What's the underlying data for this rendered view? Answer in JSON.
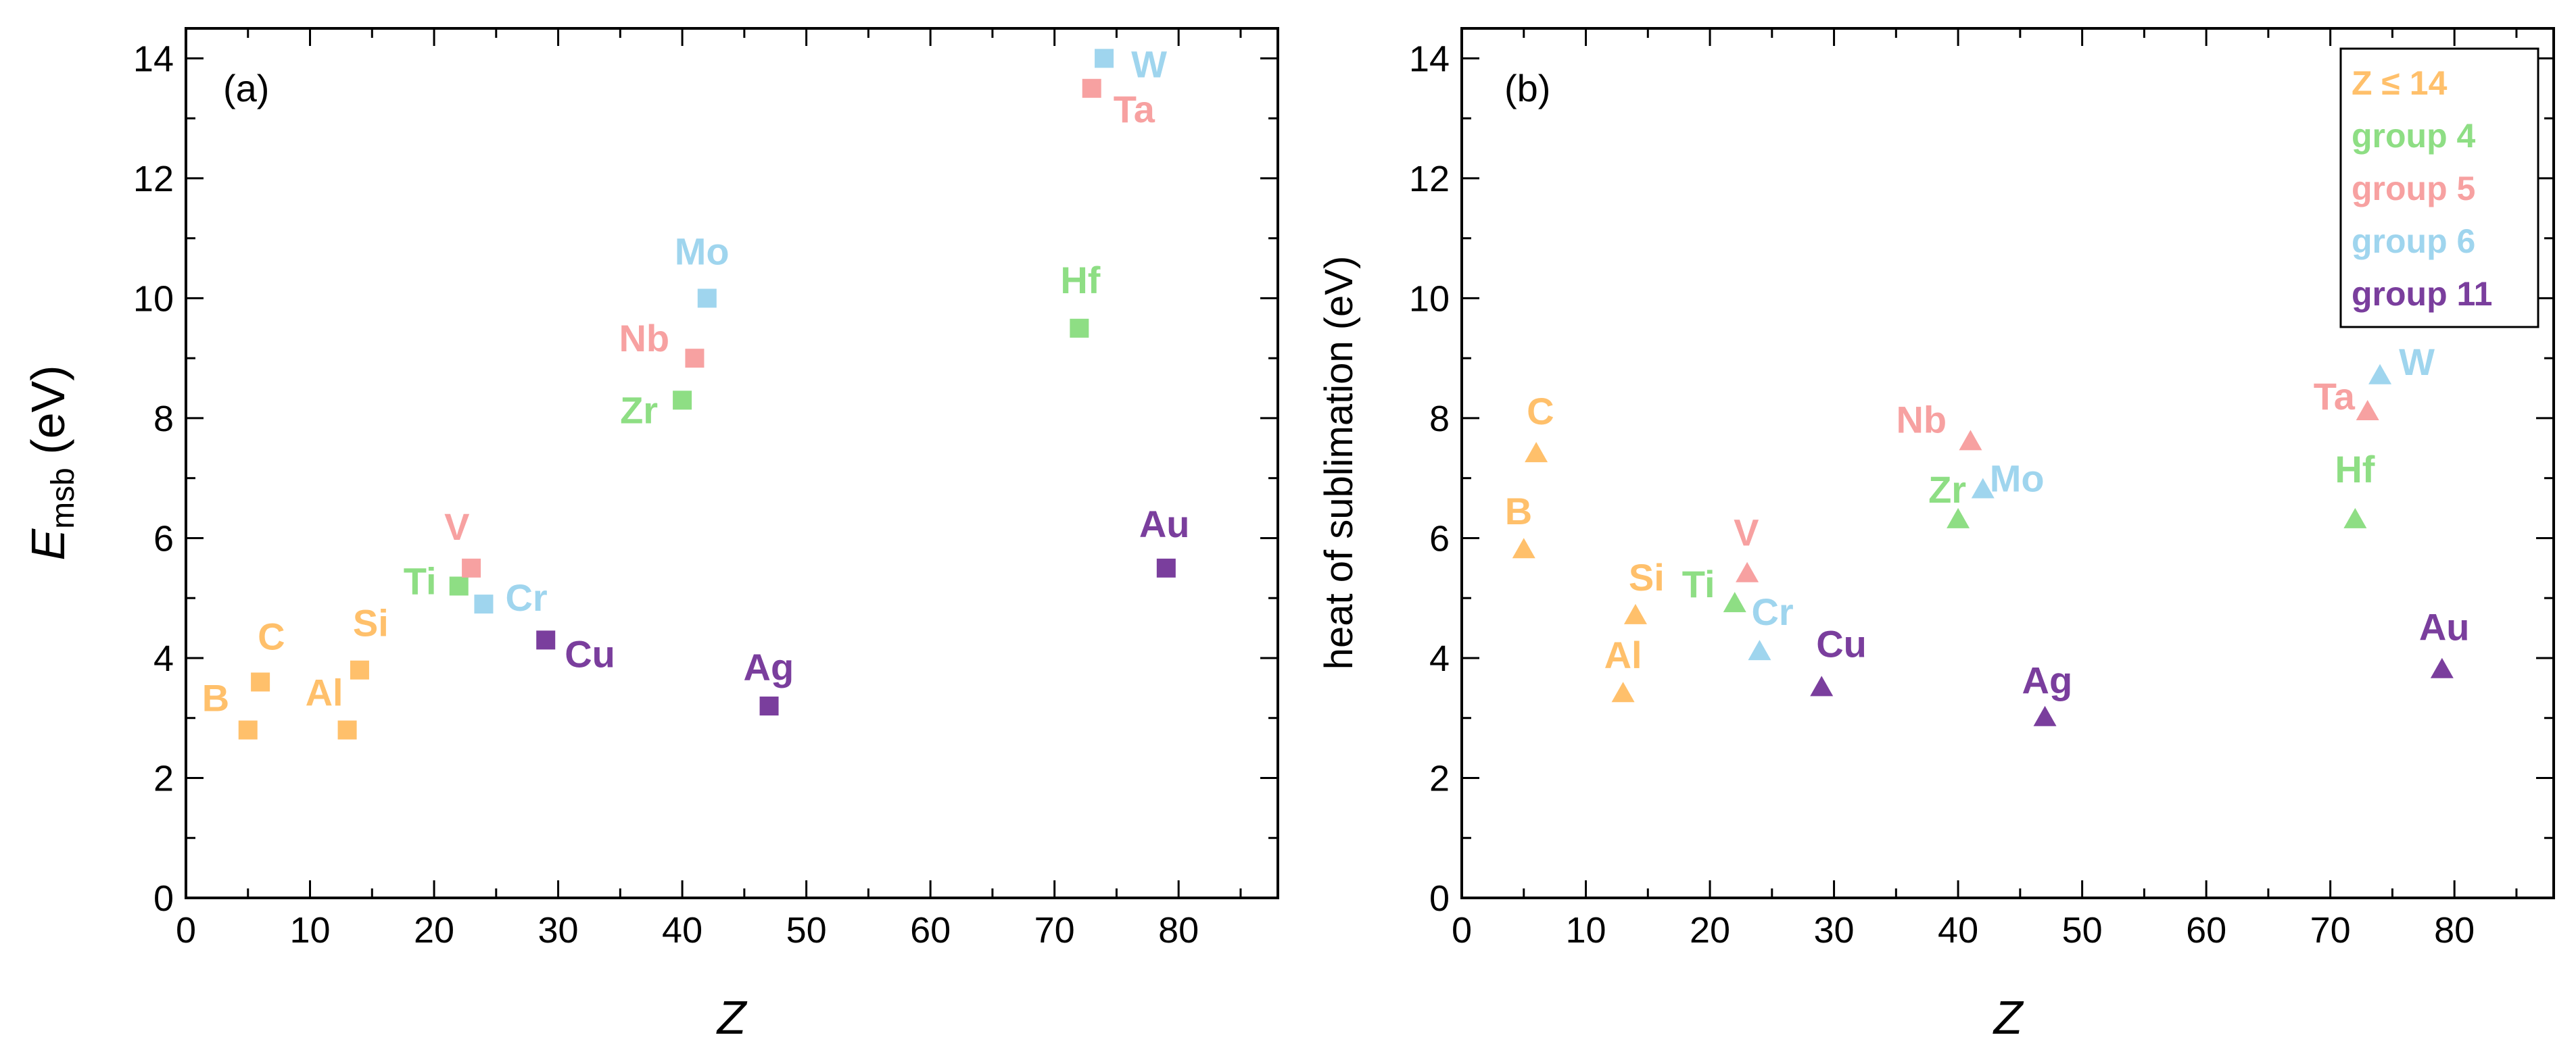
{
  "colors": {
    "z_le_14": "#FFC06B",
    "group4": "#8EDE84",
    "group5": "#F7A1A1",
    "group6": "#9FD5EE",
    "group11": "#7A3E9D"
  },
  "chart_data": [
    {
      "type": "scatter",
      "panel_label": "(a)",
      "marker": "square",
      "xlabel": "Z",
      "ylabel_main": "E",
      "ylabel_sub": "msb",
      "ylabel_unit": " (eV)",
      "xlim": [
        0,
        88
      ],
      "ylim": [
        0,
        14.5
      ],
      "xticks": [
        0,
        10,
        20,
        30,
        40,
        50,
        60,
        70,
        80
      ],
      "yticks": [
        0,
        2,
        4,
        6,
        8,
        10,
        12,
        14
      ],
      "xtick_labels": [
        "0",
        "10",
        "20",
        "30",
        "40",
        "50",
        "60",
        "70",
        "80"
      ],
      "ytick_labels": [
        "0",
        "2",
        "4",
        "6",
        "8",
        "10",
        "12",
        "14"
      ],
      "points": [
        {
          "label": "B",
          "x": 5,
          "y": 2.8,
          "group": "z_le_14"
        },
        {
          "label": "C",
          "x": 6,
          "y": 3.6,
          "group": "z_le_14"
        },
        {
          "label": "Al",
          "x": 13,
          "y": 2.8,
          "group": "z_le_14"
        },
        {
          "label": "Si",
          "x": 14,
          "y": 3.8,
          "group": "z_le_14"
        },
        {
          "label": "Ti",
          "x": 22,
          "y": 5.2,
          "group": "group4"
        },
        {
          "label": "V",
          "x": 23,
          "y": 5.5,
          "group": "group5"
        },
        {
          "label": "Cr",
          "x": 24,
          "y": 4.9,
          "group": "group6"
        },
        {
          "label": "Cu",
          "x": 29,
          "y": 4.3,
          "group": "group11"
        },
        {
          "label": "Zr",
          "x": 40,
          "y": 8.3,
          "group": "group4"
        },
        {
          "label": "Nb",
          "x": 41,
          "y": 9.0,
          "group": "group5"
        },
        {
          "label": "Mo",
          "x": 42,
          "y": 10.0,
          "group": "group6"
        },
        {
          "label": "Ag",
          "x": 47,
          "y": 3.2,
          "group": "group11"
        },
        {
          "label": "Hf",
          "x": 72,
          "y": 9.5,
          "group": "group4"
        },
        {
          "label": "Ta",
          "x": 73,
          "y": 13.5,
          "group": "group5"
        },
        {
          "label": "W",
          "x": 74,
          "y": 14.0,
          "group": "group6"
        },
        {
          "label": "Au",
          "x": 79,
          "y": 5.5,
          "group": "group11"
        }
      ]
    },
    {
      "type": "scatter",
      "panel_label": "(b)",
      "marker": "triangle",
      "xlabel": "Z",
      "ylabel": "heat of sublimation (eV)",
      "xlim": [
        0,
        88
      ],
      "ylim": [
        0,
        14.5
      ],
      "xticks": [
        0,
        10,
        20,
        30,
        40,
        50,
        60,
        70,
        80
      ],
      "yticks": [
        0,
        2,
        4,
        6,
        8,
        10,
        12,
        14
      ],
      "xtick_labels": [
        "0",
        "10",
        "20",
        "30",
        "40",
        "50",
        "60",
        "70",
        "80"
      ],
      "ytick_labels": [
        "0",
        "2",
        "4",
        "6",
        "8",
        "10",
        "12",
        "14"
      ],
      "legend": [
        {
          "label": "Z ≤ 14",
          "group": "z_le_14"
        },
        {
          "label": "group 4",
          "group": "group4"
        },
        {
          "label": "group 5",
          "group": "group5"
        },
        {
          "label": "group 6",
          "group": "group6"
        },
        {
          "label": "group 11",
          "group": "group11"
        }
      ],
      "points": [
        {
          "label": "B",
          "x": 5,
          "y": 5.8,
          "group": "z_le_14"
        },
        {
          "label": "C",
          "x": 6,
          "y": 7.4,
          "group": "z_le_14"
        },
        {
          "label": "Al",
          "x": 13,
          "y": 3.4,
          "group": "z_le_14"
        },
        {
          "label": "Si",
          "x": 14,
          "y": 4.7,
          "group": "z_le_14"
        },
        {
          "label": "Ti",
          "x": 22,
          "y": 4.9,
          "group": "group4"
        },
        {
          "label": "V",
          "x": 23,
          "y": 5.4,
          "group": "group5"
        },
        {
          "label": "Cr",
          "x": 24,
          "y": 4.1,
          "group": "group6"
        },
        {
          "label": "Cu",
          "x": 29,
          "y": 3.5,
          "group": "group11"
        },
        {
          "label": "Zr",
          "x": 40,
          "y": 6.3,
          "group": "group4"
        },
        {
          "label": "Nb",
          "x": 41,
          "y": 7.6,
          "group": "group5"
        },
        {
          "label": "Mo",
          "x": 42,
          "y": 6.8,
          "group": "group6"
        },
        {
          "label": "Ag",
          "x": 47,
          "y": 3.0,
          "group": "group11"
        },
        {
          "label": "Hf",
          "x": 72,
          "y": 6.3,
          "group": "group4"
        },
        {
          "label": "Ta",
          "x": 73,
          "y": 8.1,
          "group": "group5"
        },
        {
          "label": "W",
          "x": 74,
          "y": 8.7,
          "group": "group6"
        },
        {
          "label": "Au",
          "x": 79,
          "y": 3.8,
          "group": "group11"
        }
      ]
    }
  ]
}
